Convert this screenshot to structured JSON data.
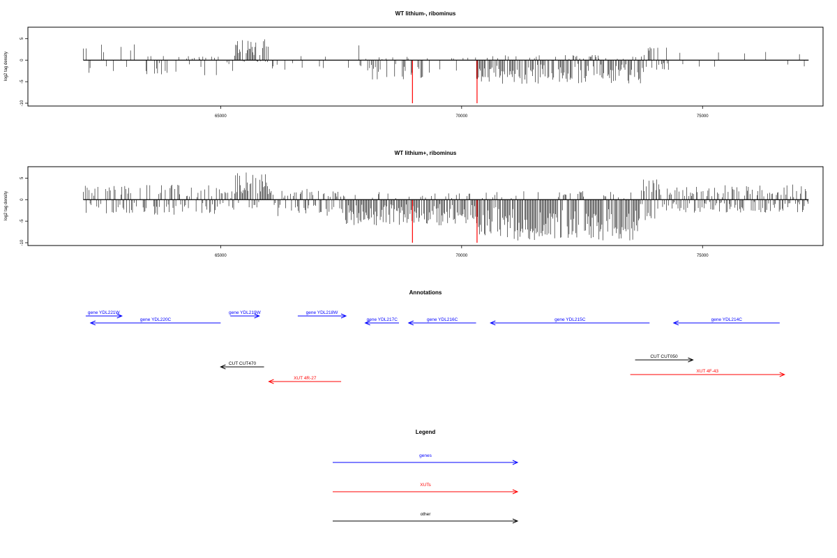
{
  "colors": {
    "gene": "#0000ff",
    "xut": "#ff0000",
    "other": "#000000",
    "marker": "#ff0000",
    "bar": "#000000"
  },
  "chart_data": [
    {
      "type": "bar",
      "title": "WT lithium-, ribominus",
      "ylabel": "log2 tag density",
      "xlim": [
        61000,
        77500
      ],
      "ylim": [
        -10,
        7
      ],
      "xticks": [
        65000,
        70000,
        75000
      ],
      "yticks": [
        -10,
        -5,
        0,
        5
      ],
      "ytick_labels": [
        "-10",
        "-5",
        "0",
        "5"
      ],
      "baseline": {
        "start": 62150,
        "end": 77200
      },
      "markers": [
        {
          "x": 68980,
          "y": -10
        },
        {
          "x": 70320,
          "y": -10
        }
      ],
      "regions": [
        {
          "start": 62150,
          "end": 63300,
          "density": 0.25,
          "upMax": 4,
          "downMax": 3
        },
        {
          "start": 63300,
          "end": 65000,
          "density": 0.35,
          "upMax": 1,
          "downMax": 3.5
        },
        {
          "start": 65000,
          "end": 65300,
          "density": 0.5,
          "upMax": 1.5,
          "downMax": 3
        },
        {
          "start": 65300,
          "end": 66000,
          "density": 0.9,
          "upMax": 5,
          "downMax": 0.5,
          "bias": "up"
        },
        {
          "start": 66000,
          "end": 67500,
          "density": 0.05,
          "upMax": 1,
          "downMax": 3
        },
        {
          "start": 67500,
          "end": 68000,
          "density": 0.15,
          "upMax": 3.5,
          "downMax": 2
        },
        {
          "start": 68000,
          "end": 69200,
          "density": 0.6,
          "upMax": 0.8,
          "downMax": 4.5,
          "bias": "down"
        },
        {
          "start": 69200,
          "end": 70300,
          "density": 0.2,
          "upMax": 0.6,
          "downMax": 3
        },
        {
          "start": 70300,
          "end": 73800,
          "density": 0.9,
          "upMax": 1.2,
          "downMax": 5.5,
          "bias": "down"
        },
        {
          "start": 73800,
          "end": 74300,
          "density": 0.7,
          "upMax": 3.5,
          "downMax": 2.5
        },
        {
          "start": 74300,
          "end": 77200,
          "density": 0.08,
          "upMax": 2.5,
          "downMax": 2
        }
      ]
    },
    {
      "type": "bar",
      "title": "WT lithium+, ribominus",
      "ylabel": "log2 tag density",
      "xlim": [
        61000,
        77500
      ],
      "ylim": [
        -10,
        7
      ],
      "xticks": [
        65000,
        70000,
        75000
      ],
      "yticks": [
        -10,
        -5,
        0,
        5
      ],
      "ytick_labels": [
        "-10",
        "-5",
        "0",
        "5"
      ],
      "baseline": {
        "start": 62150,
        "end": 77200
      },
      "markers": [
        {
          "x": 68980,
          "y": -10
        },
        {
          "x": 70320,
          "y": -10
        }
      ],
      "regions": [
        {
          "start": 62150,
          "end": 65000,
          "density": 0.7,
          "upMax": 3.5,
          "downMax": 3.5
        },
        {
          "start": 65000,
          "end": 65300,
          "density": 0.7,
          "upMax": 2,
          "downMax": 3
        },
        {
          "start": 65300,
          "end": 66000,
          "density": 1.0,
          "upMax": 6.5,
          "downMax": 2,
          "bias": "up"
        },
        {
          "start": 66000,
          "end": 67500,
          "density": 0.8,
          "upMax": 2.5,
          "downMax": 4
        },
        {
          "start": 67500,
          "end": 70300,
          "density": 1.0,
          "upMax": 2,
          "downMax": 6,
          "bias": "down"
        },
        {
          "start": 70300,
          "end": 73700,
          "density": 1.0,
          "upMax": 2,
          "downMax": 9.5,
          "bias": "down"
        },
        {
          "start": 73700,
          "end": 74100,
          "density": 1.0,
          "upMax": 5,
          "downMax": 5
        },
        {
          "start": 74100,
          "end": 77200,
          "density": 0.9,
          "upMax": 3.5,
          "downMax": 3
        }
      ]
    }
  ],
  "annotations": {
    "title": "Annotations",
    "features": [
      {
        "label": "gene YDL221W",
        "kind": "gene",
        "start": 62200,
        "end": 62950,
        "strand": "+",
        "row": 0
      },
      {
        "label": "gene YDL220C",
        "kind": "gene",
        "start": 62300,
        "end": 65000,
        "strand": "-",
        "row": 1
      },
      {
        "label": "gene YDL219W",
        "kind": "gene",
        "start": 65200,
        "end": 65800,
        "strand": "+",
        "row": 0
      },
      {
        "label": "gene YDL218W",
        "kind": "gene",
        "start": 66600,
        "end": 67600,
        "strand": "+",
        "row": 0
      },
      {
        "label": "gene YDL217C",
        "kind": "gene",
        "start": 68000,
        "end": 68700,
        "strand": "-",
        "row": 1
      },
      {
        "label": "gene YDL216C",
        "kind": "gene",
        "start": 68900,
        "end": 70300,
        "strand": "-",
        "row": 1
      },
      {
        "label": "gene YDL215C",
        "kind": "gene",
        "start": 70600,
        "end": 73900,
        "strand": "-",
        "row": 1
      },
      {
        "label": "gene YDL214C",
        "kind": "gene",
        "start": 74400,
        "end": 76600,
        "strand": "-",
        "row": 1
      },
      {
        "label": "CUT CUT470",
        "kind": "other",
        "start": 65000,
        "end": 65900,
        "strand": "-",
        "row": 2
      },
      {
        "label": "CUT CUT050",
        "kind": "other",
        "start": 73600,
        "end": 74800,
        "strand": "+",
        "row": 3
      },
      {
        "label": "XUT 4R-27",
        "kind": "xut",
        "start": 66000,
        "end": 67500,
        "strand": "-",
        "row": 4
      },
      {
        "label": "XUT 4F-43",
        "kind": "xut",
        "start": 73500,
        "end": 76700,
        "strand": "+",
        "row": 5
      }
    ]
  },
  "legend": {
    "title": "Legend",
    "items": [
      {
        "label": "genes",
        "kind": "gene"
      },
      {
        "label": "XUTs",
        "kind": "xut"
      },
      {
        "label": "other",
        "kind": "other"
      }
    ]
  }
}
